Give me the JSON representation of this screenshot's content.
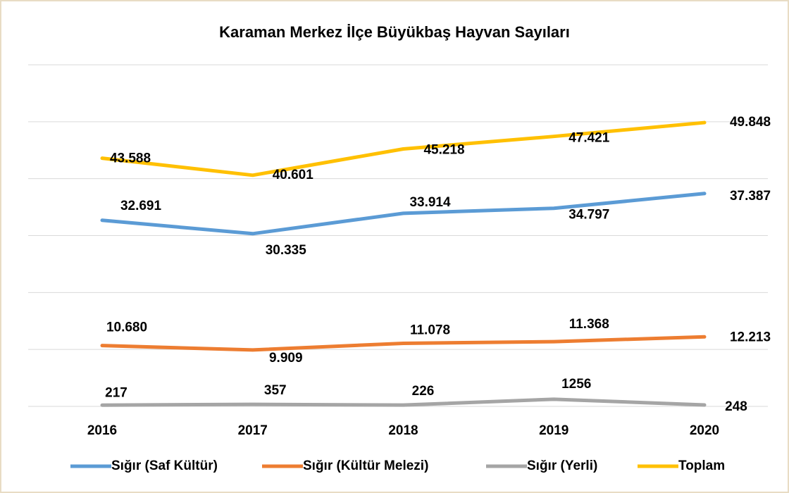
{
  "chart_data": {
    "type": "line",
    "title": "Karaman Merkez İlçe Büyükbaş Hayvan Sayıları",
    "categories": [
      "2016",
      "2017",
      "2018",
      "2019",
      "2020"
    ],
    "series": [
      {
        "name": "Sığır (Saf Kültür)",
        "color": "#5b9bd5",
        "values": [
          32691,
          30335,
          33914,
          34797,
          37387
        ],
        "value_labels": [
          "32.691",
          "30.335",
          "33.914",
          "34.797",
          "37.387"
        ]
      },
      {
        "name": "Sığır (Kültür Melezi)",
        "color": "#ed7d31",
        "values": [
          10680,
          9909,
          11078,
          11368,
          12213
        ],
        "value_labels": [
          "10.680",
          "9.909",
          "11.078",
          "11.368",
          "12.213"
        ]
      },
      {
        "name": "Sığır (Yerli)",
        "color": "#a5a5a5",
        "values": [
          217,
          357,
          226,
          1256,
          248
        ],
        "value_labels": [
          "217",
          "357",
          "226",
          "1256",
          "248"
        ]
      },
      {
        "name": "Toplam",
        "color": "#ffc000",
        "values": [
          43588,
          40601,
          45218,
          47421,
          49848
        ],
        "value_labels": [
          "43.588",
          "40.601",
          "45.218",
          "47.421",
          "49.848"
        ]
      }
    ],
    "ylim": [
      0,
      60000
    ],
    "yticks": [
      0,
      10000,
      20000,
      30000,
      40000,
      50000,
      60000
    ],
    "grid": true,
    "legend": "bottom"
  }
}
